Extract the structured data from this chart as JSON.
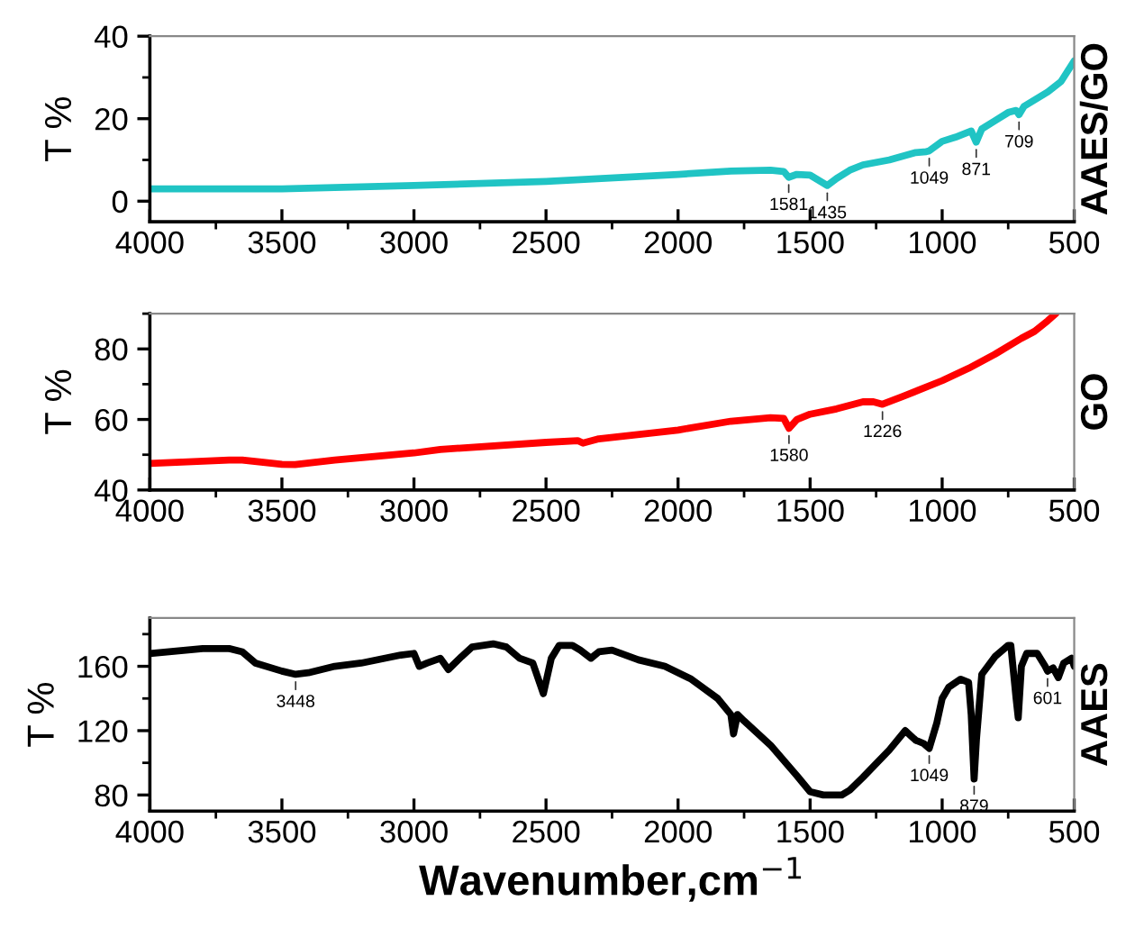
{
  "chart_data": [
    {
      "type": "line",
      "ylabel": "T %",
      "xlim": [
        4000,
        500
      ],
      "xticks": [
        4000,
        3500,
        3000,
        2500,
        2000,
        1500,
        1000,
        500
      ],
      "ylim": [
        -5,
        40
      ],
      "yticks": [
        0,
        20,
        40
      ],
      "grid": false,
      "marker": "none",
      "line_style": "solid",
      "series": [
        {
          "color": "#20c4c4",
          "x": [
            4000,
            3500,
            3000,
            2500,
            2000,
            1800,
            1650,
            1600,
            1581,
            1550,
            1500,
            1435,
            1400,
            1350,
            1300,
            1200,
            1100,
            1060,
            1049,
            1000,
            950,
            890,
            871,
            850,
            800,
            750,
            720,
            709,
            690,
            600,
            550,
            500
          ],
          "values": [
            3,
            3,
            3.8,
            4.8,
            6.5,
            7.3,
            7.5,
            7.2,
            5.8,
            6.5,
            6.3,
            3.8,
            5.5,
            7.5,
            8.8,
            10,
            11.8,
            12,
            12.2,
            14.5,
            15.5,
            17,
            14.3,
            17.5,
            19.5,
            21.5,
            22,
            21,
            23,
            26.5,
            29,
            34
          ]
        }
      ],
      "annotations": [
        "AAES/GO",
        {
          "text": "1581",
          "x": 1581,
          "y": 5.8
        },
        {
          "text": "1435",
          "x": 1435,
          "y": 3.8
        },
        {
          "text": "1049",
          "x": 1049,
          "y": 12.2
        },
        {
          "text": "871",
          "x": 871,
          "y": 14.3
        },
        {
          "text": "709",
          "x": 709,
          "y": 21
        }
      ]
    },
    {
      "type": "line",
      "ylabel": "T %",
      "xlim": [
        4000,
        500
      ],
      "xticks": [
        4000,
        3500,
        3000,
        2500,
        2000,
        1500,
        1000,
        500
      ],
      "ylim": [
        40,
        90
      ],
      "yticks": [
        40,
        60,
        80
      ],
      "grid": false,
      "marker": "none",
      "line_style": "solid",
      "series": [
        {
          "color": "#ff0000",
          "x": [
            4000,
            3700,
            3650,
            3500,
            3450,
            3300,
            3000,
            2900,
            2500,
            2380,
            2360,
            2300,
            2000,
            1800,
            1650,
            1600,
            1580,
            1550,
            1500,
            1400,
            1300,
            1260,
            1226,
            1150,
            1000,
            900,
            800,
            700,
            650,
            600,
            570
          ],
          "values": [
            47.5,
            48.5,
            48.5,
            47.3,
            47.2,
            48.5,
            50.5,
            51.5,
            53.5,
            54,
            53.3,
            54.5,
            57,
            59.5,
            60.5,
            60.3,
            57.5,
            60,
            61.5,
            63,
            65,
            65,
            64.3,
            66.5,
            71,
            74.5,
            78.5,
            83,
            85,
            88,
            90
          ]
        }
      ],
      "annotations": [
        "GO",
        {
          "text": "1580",
          "x": 1580,
          "y": 57.5
        },
        {
          "text": "1226",
          "x": 1226,
          "y": 64.3
        }
      ]
    },
    {
      "type": "line",
      "ylabel": "T %",
      "xlabel": "Wavenumber,cm$^{−1}$",
      "xlim": [
        4000,
        500
      ],
      "xticks": [
        4000,
        3500,
        3000,
        2500,
        2000,
        1500,
        1000,
        500
      ],
      "ylim": [
        70,
        190
      ],
      "yticks": [
        80,
        120,
        160
      ],
      "grid": false,
      "marker": "none",
      "line_style": "solid",
      "series": [
        {
          "color": "#000000",
          "x": [
            4000,
            3800,
            3700,
            3650,
            3600,
            3500,
            3448,
            3400,
            3300,
            3200,
            3050,
            3000,
            2980,
            2950,
            2900,
            2870,
            2820,
            2780,
            2700,
            2650,
            2600,
            2550,
            2510,
            2480,
            2450,
            2400,
            2370,
            2330,
            2300,
            2250,
            2150,
            2050,
            1950,
            1850,
            1800,
            1790,
            1775,
            1750,
            1650,
            1550,
            1500,
            1450,
            1380,
            1350,
            1300,
            1200,
            1140,
            1120,
            1100,
            1070,
            1049,
            1020,
            1000,
            975,
            930,
            900,
            890,
            879,
            870,
            850,
            800,
            750,
            740,
            720,
            712,
            700,
            680,
            640,
            610,
            601,
            580,
            560,
            540,
            510,
            500
          ],
          "values": [
            168,
            171,
            171,
            169,
            162,
            157,
            155,
            156,
            160,
            162,
            167,
            168,
            160,
            162,
            165,
            158,
            166,
            172,
            174,
            172,
            165,
            162,
            143,
            165,
            173,
            173,
            170,
            165,
            169,
            170,
            164,
            160,
            152,
            140,
            130,
            118,
            130,
            126,
            111,
            92,
            82,
            80,
            80,
            83,
            91,
            108,
            120,
            117,
            114,
            112,
            109,
            125,
            140,
            147,
            152,
            150,
            130,
            90,
            115,
            155,
            166,
            173,
            173,
            140,
            128,
            160,
            168,
            168,
            160,
            157,
            159,
            153,
            162,
            165,
            160
          ]
        }
      ],
      "annotations": [
        "AAES",
        {
          "text": "3448",
          "x": 3448,
          "y": 155
        },
        {
          "text": "1049",
          "x": 1049,
          "y": 109
        },
        {
          "text": "879",
          "x": 879,
          "y": 90
        },
        {
          "text": "601",
          "x": 601,
          "y": 157
        }
      ]
    }
  ]
}
